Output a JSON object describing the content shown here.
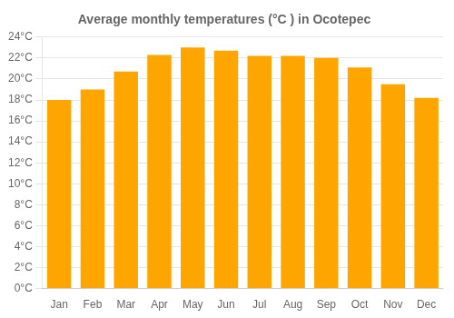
{
  "chart_data": {
    "type": "bar",
    "title": "Average monthly temperatures (°C ) in Ocotepec",
    "categories": [
      "Jan",
      "Feb",
      "Mar",
      "Apr",
      "May",
      "Jun",
      "Jul",
      "Aug",
      "Sep",
      "Oct",
      "Nov",
      "Dec"
    ],
    "values": [
      18.0,
      19.0,
      20.7,
      22.3,
      23.0,
      22.7,
      22.2,
      22.2,
      22.0,
      21.1,
      19.5,
      18.2
    ],
    "color": "#FFA500",
    "ylim": [
      0,
      24
    ],
    "yticks": [
      {
        "value": 0,
        "label": "0°C"
      },
      {
        "value": 2,
        "label": "2°C"
      },
      {
        "value": 4,
        "label": "4°C"
      },
      {
        "value": 6,
        "label": "6°C"
      },
      {
        "value": 8,
        "label": "8°C"
      },
      {
        "value": 10,
        "label": "10°C"
      },
      {
        "value": 12,
        "label": "12°C"
      },
      {
        "value": 14,
        "label": "14°C"
      },
      {
        "value": 16,
        "label": "16°C"
      },
      {
        "value": 18,
        "label": "18°C"
      },
      {
        "value": 20,
        "label": "20°C"
      },
      {
        "value": 22,
        "label": "22°C"
      },
      {
        "value": 24,
        "label": "24°C"
      }
    ],
    "grid": true
  }
}
